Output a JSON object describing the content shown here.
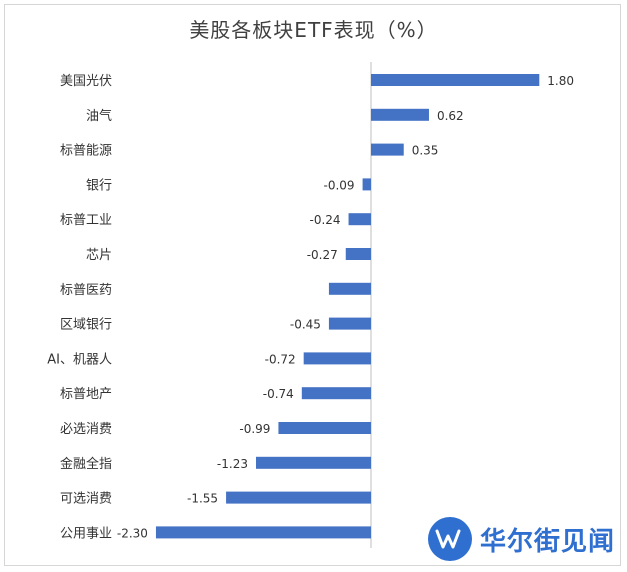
{
  "chart_data": {
    "type": "bar",
    "orientation": "horizontal",
    "title": "美股各板块ETF表现（%）",
    "categories": [
      "美国光伏",
      "油气",
      "标普能源",
      "银行",
      "标普工业",
      "芯片",
      "标普医药",
      "区域银行",
      "AI、机器人",
      "标普地产",
      "必选消费",
      "金融全指",
      "可选消费",
      "公用事业"
    ],
    "values": [
      1.8,
      0.62,
      0.35,
      -0.09,
      -0.24,
      -0.27,
      -0.45,
      -0.45,
      -0.72,
      -0.74,
      -0.99,
      -1.23,
      -1.55,
      -2.3
    ],
    "value_labels": [
      "1.80",
      "0.62",
      "0.35",
      "-0.09",
      "-0.24",
      "-0.27",
      "",
      "-0.45",
      "-0.72",
      "-0.74",
      "-0.99",
      "-1.23",
      "-1.55",
      "-2.30"
    ],
    "bar_color": "#4472c4",
    "xlim": [
      -2.3,
      1.8
    ],
    "grid": false,
    "legend": "none"
  },
  "watermark": {
    "text": "华尔街见闻",
    "logo_glyph": "W",
    "color": "#2f6fd0"
  }
}
